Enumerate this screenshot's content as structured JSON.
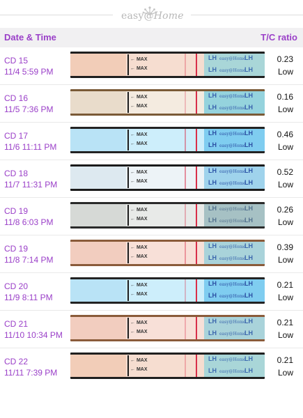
{
  "logo": {
    "text_before": "easy",
    "text_after": "Home",
    "at": "@"
  },
  "header": {
    "left_label": "Date & Time",
    "right_label": "T/C ratio"
  },
  "strip_text": {
    "max": "← MAX",
    "lh": "LH",
    "brand": "easy@Home"
  },
  "colors": {
    "accent": "#9a3fc8",
    "control_line": "#d92f4a"
  },
  "rows": [
    {
      "cd": "CD 15",
      "datetime": "11/4 5:59 PM",
      "ratio": "0.23",
      "level": "Low",
      "tone": "peach",
      "test_intensity": 0.23
    },
    {
      "cd": "CD 16",
      "datetime": "11/5 7:36 PM",
      "ratio": "0.16",
      "level": "Low",
      "tone": "cream",
      "test_intensity": 0.16
    },
    {
      "cd": "CD 17",
      "datetime": "11/6 11:11 PM",
      "ratio": "0.46",
      "level": "Low",
      "tone": "blue",
      "test_intensity": 0.46
    },
    {
      "cd": "CD 18",
      "datetime": "11/7 11:31 PM",
      "ratio": "0.52",
      "level": "Low",
      "tone": "pale",
      "test_intensity": 0.52
    },
    {
      "cd": "CD 19",
      "datetime": "11/8 6:03 PM",
      "ratio": "0.26",
      "level": "Low",
      "tone": "grey",
      "test_intensity": 0.26
    },
    {
      "cd": "CD 19",
      "datetime": "11/8 7:14 PM",
      "ratio": "0.39",
      "level": "Low",
      "tone": "pink",
      "test_intensity": 0.39
    },
    {
      "cd": "CD 20",
      "datetime": "11/9 8:11 PM",
      "ratio": "0.21",
      "level": "Low",
      "tone": "blue",
      "test_intensity": 0.21
    },
    {
      "cd": "CD 21",
      "datetime": "11/10 10:34 PM",
      "ratio": "0.21",
      "level": "Low",
      "tone": "pink",
      "test_intensity": 0.21
    },
    {
      "cd": "CD 22",
      "datetime": "11/11 7:39 PM",
      "ratio": "0.21",
      "level": "Low",
      "tone": "peach",
      "test_intensity": 0.21
    }
  ]
}
